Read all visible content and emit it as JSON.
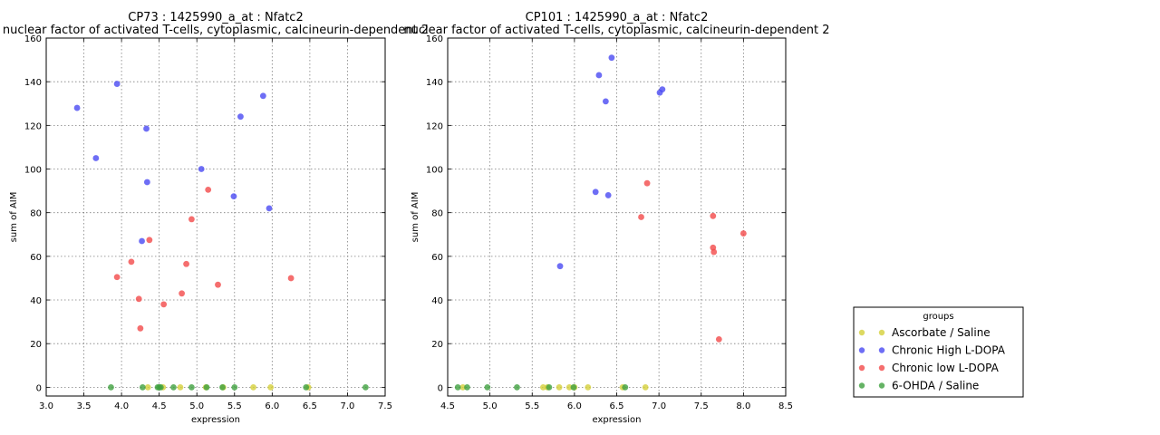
{
  "colors": {
    "Ascorbate / Saline": "#d4cf3a",
    "Chronic High L-DOPA": "#4a4af2",
    "Chronic low L-DOPA": "#f24a4a",
    "6-OHDA / Saline": "#3fa03f",
    "grid": "#7f7f7f",
    "axis": "#000000"
  },
  "legend": {
    "title": "groups",
    "placement": "right-bottom",
    "entries": [
      "Ascorbate / Saline",
      "Chronic High L-DOPA",
      "Chronic low L-DOPA",
      "6-OHDA / Saline"
    ]
  },
  "chart_data": [
    {
      "type": "scatter",
      "title": "CP73 : 1425990_a_at : Nfatc2",
      "subtitle": "nuclear factor of activated T-cells, cytoplasmic, calcineurin-dependent 2",
      "xlabel": "expression",
      "ylabel": "sum of AIM",
      "xlim": [
        3.0,
        7.5
      ],
      "ylim": [
        -4,
        160
      ],
      "xticks": [
        3.0,
        3.5,
        4.0,
        4.5,
        5.0,
        5.5,
        6.0,
        6.5,
        7.0,
        7.5
      ],
      "xtick_labels": [
        "3.0",
        "3.5",
        "4.0",
        "4.5",
        "5.0",
        "5.5",
        "6.0",
        "6.5",
        "7.0",
        "7.5"
      ],
      "yticks": [
        0,
        20,
        40,
        60,
        80,
        100,
        120,
        140,
        160
      ],
      "ytick_labels": [
        "0",
        "20",
        "40",
        "60",
        "80",
        "100",
        "120",
        "140",
        "160"
      ],
      "grid": true,
      "series": [
        {
          "name": "Ascorbate / Saline",
          "x": [
            4.35,
            4.55,
            4.78,
            5.12,
            5.35,
            5.75,
            5.98,
            6.48
          ],
          "y": [
            0,
            0,
            0,
            0,
            0,
            0,
            0,
            0
          ]
        },
        {
          "name": "Chronic High L-DOPA",
          "x": [
            3.41,
            3.66,
            3.94,
            4.33,
            4.34,
            4.27,
            5.06,
            5.49,
            5.58,
            5.88,
            5.96
          ],
          "y": [
            128,
            105,
            139,
            118.5,
            94,
            67,
            100,
            87.5,
            124,
            133.5,
            82
          ]
        },
        {
          "name": "Chronic low L-DOPA",
          "x": [
            3.94,
            4.13,
            4.23,
            4.25,
            4.37,
            4.56,
            4.8,
            4.86,
            4.93,
            5.15,
            5.28,
            6.25
          ],
          "y": [
            50.5,
            57.5,
            40.5,
            27,
            67.5,
            38,
            43,
            56.5,
            77,
            90.5,
            47,
            50
          ]
        },
        {
          "name": "6-OHDA / Saline",
          "x": [
            3.86,
            4.28,
            4.48,
            4.5,
            4.52,
            4.69,
            4.93,
            5.13,
            5.34,
            5.5,
            6.45,
            7.24
          ],
          "y": [
            0,
            0,
            0,
            0,
            0,
            0,
            0,
            0,
            0,
            0,
            0,
            0
          ]
        }
      ]
    },
    {
      "type": "scatter",
      "title": "CP101 : 1425990_a_at : Nfatc2",
      "subtitle": "nuclear factor of activated T-cells, cytoplasmic, calcineurin-dependent 2",
      "xlabel": "expression",
      "ylabel": "sum of AIM",
      "xlim": [
        4.5,
        8.5
      ],
      "ylim": [
        -4,
        160
      ],
      "xticks": [
        4.5,
        5.0,
        5.5,
        6.0,
        6.5,
        7.0,
        7.5,
        8.0,
        8.5
      ],
      "xtick_labels": [
        "4.5",
        "5.0",
        "5.5",
        "6.0",
        "6.5",
        "7.0",
        "7.5",
        "8.0",
        "8.5"
      ],
      "yticks": [
        0,
        20,
        40,
        60,
        80,
        100,
        120,
        140,
        160
      ],
      "ytick_labels": [
        "0",
        "20",
        "40",
        "60",
        "80",
        "100",
        "120",
        "140",
        "160"
      ],
      "grid": true,
      "series": [
        {
          "name": "Ascorbate / Saline",
          "x": [
            4.68,
            5.63,
            5.68,
            5.82,
            5.94,
            6.0,
            6.16,
            6.57,
            6.84
          ],
          "y": [
            0,
            0,
            0,
            0,
            0,
            0,
            0,
            0,
            0
          ]
        },
        {
          "name": "Chronic High L-DOPA",
          "x": [
            5.83,
            6.25,
            6.29,
            6.37,
            6.4,
            6.44,
            7.01,
            7.04
          ],
          "y": [
            55.5,
            89.5,
            143,
            131,
            88,
            151,
            135,
            136.5
          ]
        },
        {
          "name": "Chronic low L-DOPA",
          "x": [
            6.79,
            6.86,
            7.64,
            7.64,
            7.65,
            7.71,
            8.0
          ],
          "y": [
            78,
            93.5,
            78.5,
            64,
            62,
            22,
            70.5
          ]
        },
        {
          "name": "6-OHDA / Saline",
          "x": [
            4.62,
            4.73,
            4.97,
            5.32,
            5.7,
            5.99,
            6.6
          ],
          "y": [
            0,
            0,
            0,
            0,
            0,
            0,
            0
          ]
        }
      ]
    }
  ]
}
